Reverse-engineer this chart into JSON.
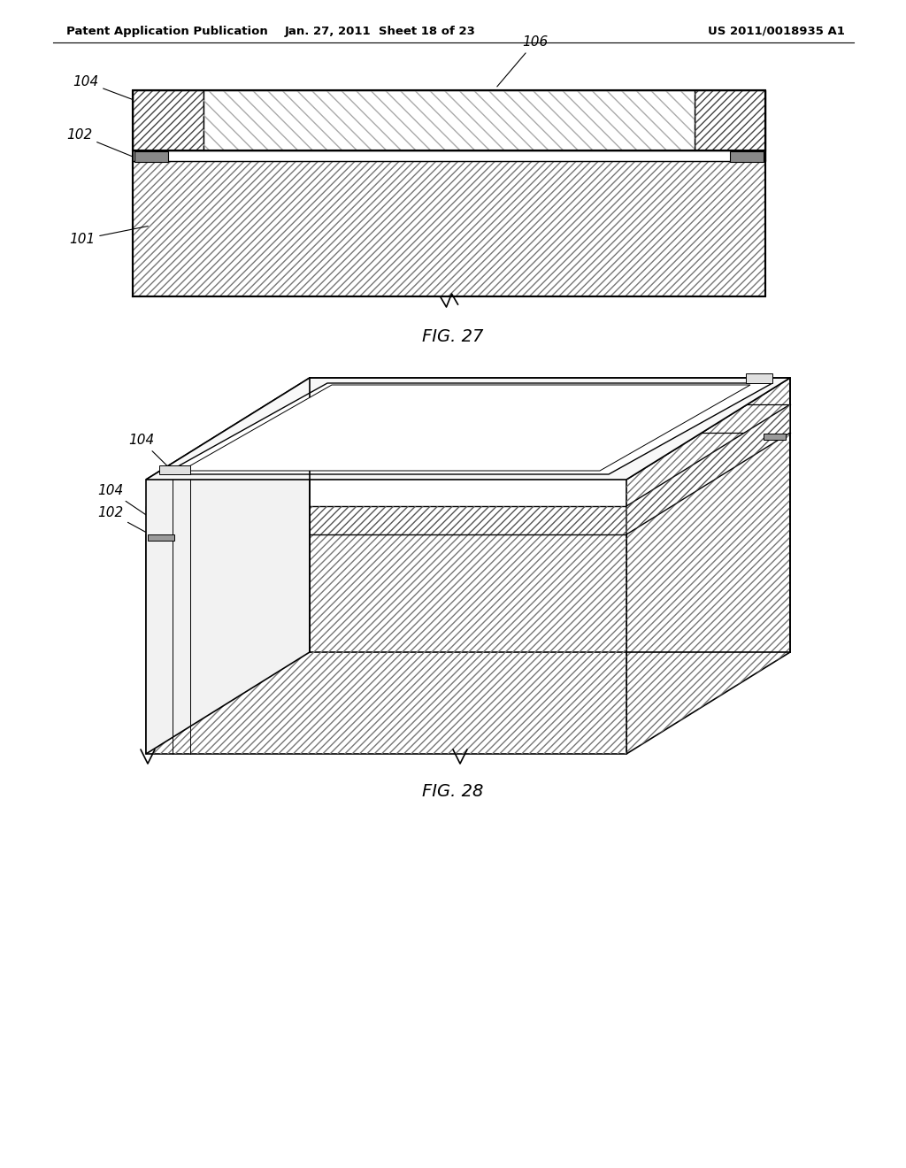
{
  "header_left": "Patent Application Publication",
  "header_middle": "Jan. 27, 2011  Sheet 18 of 23",
  "header_right": "US 2011/0018935 A1",
  "fig27_label": "FIG. 27",
  "fig28_label": "FIG. 28",
  "bg_color": "#ffffff"
}
